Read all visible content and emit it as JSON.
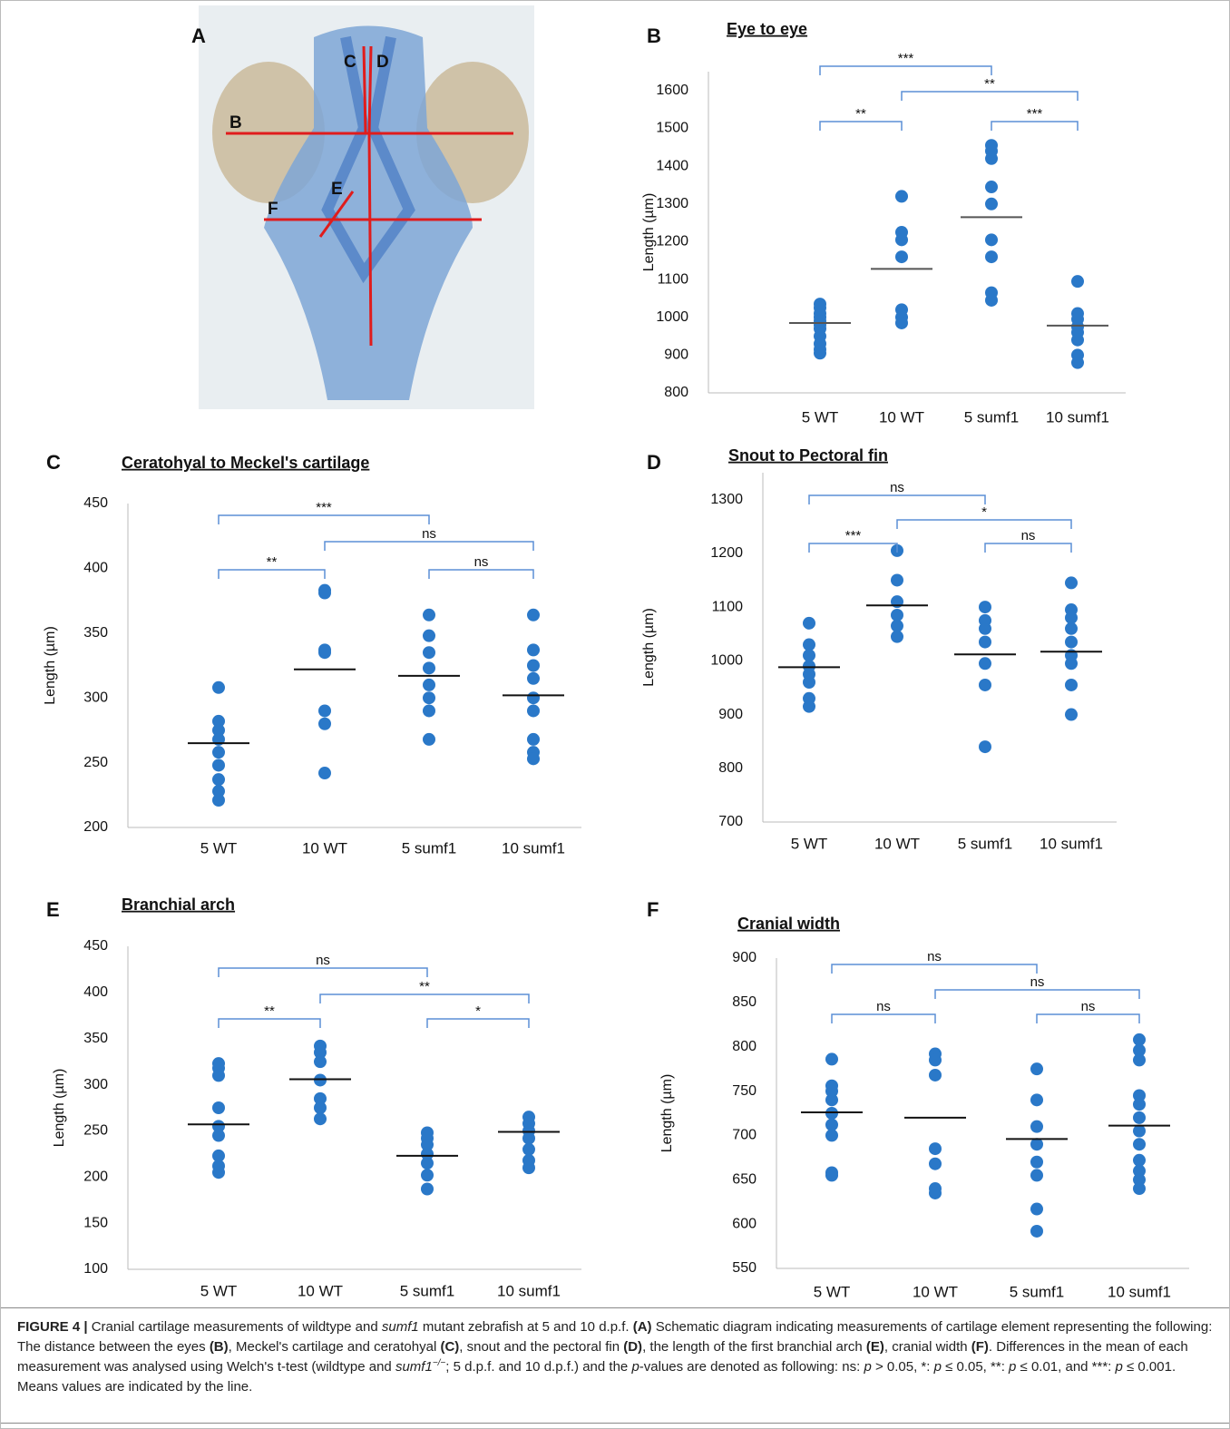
{
  "panel_a": {
    "panel": "A",
    "labels": [
      "B",
      "C",
      "D",
      "E",
      "F"
    ]
  },
  "chart_data": [
    {
      "type": "dot",
      "panel": "B",
      "title": "Eye to eye",
      "y_label": "Length (µm)",
      "color": "#2a78c8",
      "mean_color": "#555555",
      "bracket_color": "#5b8fd6",
      "categories": [
        "5 WT",
        "10 WT",
        "5 sumf1",
        "10 sumf1"
      ],
      "values": [
        [
          1035,
          1025,
          1010,
          1000,
          990,
          980,
          970,
          950,
          930,
          915,
          905
        ],
        [
          1320,
          1225,
          1205,
          1160,
          1020,
          1000,
          985
        ],
        [
          1455,
          1440,
          1420,
          1345,
          1300,
          1205,
          1160,
          1065,
          1045
        ],
        [
          1095,
          1010,
          995,
          975,
          960,
          940,
          900,
          880
        ]
      ],
      "means": [
        985,
        1128,
        1265,
        978
      ],
      "comparisons": [
        {
          "from": 0,
          "to": 2,
          "label": "***"
        },
        {
          "from": 1,
          "to": 3,
          "label": "**"
        },
        {
          "from": 0,
          "to": 1,
          "label": "**"
        },
        {
          "from": 2,
          "to": 3,
          "label": "***"
        }
      ],
      "ylim": [
        800,
        1650
      ],
      "yticks": [
        800,
        900,
        1000,
        1100,
        1200,
        1300,
        1400,
        1500,
        1600
      ]
    },
    {
      "type": "dot",
      "panel": "C",
      "title": "Ceratohyal to Meckel's cartilage",
      "y_label": "Length (µm)",
      "color": "#2a78c8",
      "mean_color": "#111111",
      "bracket_color": "#5b8fd6",
      "categories": [
        "5 WT",
        "10 WT",
        "5 sumf1",
        "10 sumf1"
      ],
      "values": [
        [
          308,
          282,
          275,
          268,
          258,
          248,
          237,
          228,
          221
        ],
        [
          383,
          381,
          337,
          335,
          290,
          280,
          242
        ],
        [
          364,
          348,
          335,
          323,
          310,
          300,
          290,
          268
        ],
        [
          364,
          337,
          325,
          315,
          300,
          290,
          268,
          258,
          253
        ]
      ],
      "means": [
        265,
        322,
        317,
        302
      ],
      "comparisons": [
        {
          "from": 0,
          "to": 2,
          "label": "***"
        },
        {
          "from": 1,
          "to": 3,
          "label": "ns"
        },
        {
          "from": 0,
          "to": 1,
          "label": "**"
        },
        {
          "from": 2,
          "to": 3,
          "label": "ns"
        }
      ],
      "ylim": [
        200,
        450
      ],
      "yticks": [
        200,
        250,
        300,
        350,
        400,
        450
      ]
    },
    {
      "type": "dot",
      "panel": "D",
      "title": "Snout to Pectoral fin",
      "y_label": "Length (µm)",
      "color": "#2a78c8",
      "mean_color": "#111111",
      "bracket_color": "#5b8fd6",
      "categories": [
        "5 WT",
        "10 WT",
        "5 sumf1",
        "10 sumf1"
      ],
      "values": [
        [
          1070,
          1030,
          1010,
          990,
          975,
          960,
          930,
          915
        ],
        [
          1205,
          1150,
          1110,
          1085,
          1065,
          1045
        ],
        [
          1100,
          1075,
          1060,
          1035,
          995,
          955,
          840
        ],
        [
          1145,
          1095,
          1080,
          1060,
          1035,
          1010,
          995,
          955,
          900
        ]
      ],
      "means": [
        988,
        1103,
        1012,
        1017
      ],
      "comparisons": [
        {
          "from": 0,
          "to": 2,
          "label": "ns"
        },
        {
          "from": 1,
          "to": 3,
          "label": "*"
        },
        {
          "from": 0,
          "to": 1,
          "label": "***"
        },
        {
          "from": 2,
          "to": 3,
          "label": "ns"
        }
      ],
      "ylim": [
        700,
        1350
      ],
      "yticks": [
        700,
        800,
        900,
        1000,
        1100,
        1200,
        1300
      ]
    },
    {
      "type": "dot",
      "panel": "E",
      "title": "Branchial arch",
      "y_label": "Length (µm)",
      "color": "#2a78c8",
      "mean_color": "#111111",
      "bracket_color": "#5b8fd6",
      "categories": [
        "5 WT",
        "10 WT",
        "5 sumf1",
        "10 sumf1"
      ],
      "values": [
        [
          323,
          318,
          310,
          275,
          255,
          245,
          223,
          212,
          205
        ],
        [
          342,
          335,
          325,
          305,
          285,
          275,
          263
        ],
        [
          248,
          242,
          235,
          225,
          215,
          202,
          187
        ],
        [
          265,
          258,
          250,
          242,
          230,
          218,
          210
        ]
      ],
      "means": [
        257,
        306,
        223,
        249
      ],
      "comparisons": [
        {
          "from": 0,
          "to": 2,
          "label": "ns"
        },
        {
          "from": 1,
          "to": 3,
          "label": "**"
        },
        {
          "from": 0,
          "to": 1,
          "label": "**"
        },
        {
          "from": 2,
          "to": 3,
          "label": "*"
        }
      ],
      "ylim": [
        100,
        450
      ],
      "yticks": [
        100,
        150,
        200,
        250,
        300,
        350,
        400,
        450
      ]
    },
    {
      "type": "dot",
      "panel": "F",
      "title": "Cranial width",
      "y_label": "Length (µm)",
      "color": "#2a78c8",
      "mean_color": "#111111",
      "bracket_color": "#5b8fd6",
      "categories": [
        "5 WT",
        "10 WT",
        "5 sumf1",
        "10 sumf1"
      ],
      "values": [
        [
          786,
          756,
          750,
          740,
          725,
          712,
          700,
          658,
          655
        ],
        [
          792,
          785,
          768,
          685,
          668,
          640,
          635
        ],
        [
          775,
          740,
          710,
          690,
          670,
          655,
          617,
          592
        ],
        [
          808,
          796,
          785,
          745,
          735,
          720,
          705,
          690,
          672,
          660,
          650,
          640
        ]
      ],
      "means": [
        726,
        720,
        696,
        711
      ],
      "comparisons": [
        {
          "from": 0,
          "to": 2,
          "label": "ns"
        },
        {
          "from": 1,
          "to": 3,
          "label": "ns"
        },
        {
          "from": 0,
          "to": 1,
          "label": "ns"
        },
        {
          "from": 2,
          "to": 3,
          "label": "ns"
        }
      ],
      "ylim": [
        550,
        900
      ],
      "yticks": [
        550,
        600,
        650,
        700,
        750,
        800,
        850,
        900
      ]
    }
  ],
  "caption": {
    "runs": [
      {
        "text": "FIGURE 4 |",
        "style": "b"
      },
      {
        "text": " Cranial cartilage measurements of wildtype and ",
        "style": "n"
      },
      {
        "text": "sumf1",
        "style": "i"
      },
      {
        "text": " mutant zebrafish at 5 and 10 d.p.f. ",
        "style": "n"
      },
      {
        "text": "(A)",
        "style": "b"
      },
      {
        "text": " Schematic diagram indicating measurements of cartilage element representing the following: The distance between the eyes ",
        "style": "n"
      },
      {
        "text": "(B)",
        "style": "b"
      },
      {
        "text": ", Meckel's cartilage and ceratohyal ",
        "style": "n"
      },
      {
        "text": "(C)",
        "style": "b"
      },
      {
        "text": ", snout and the pectoral fin ",
        "style": "n"
      },
      {
        "text": "(D)",
        "style": "b"
      },
      {
        "text": ", the length of the first branchial arch ",
        "style": "n"
      },
      {
        "text": "(E)",
        "style": "b"
      },
      {
        "text": ", cranial width ",
        "style": "n"
      },
      {
        "text": "(F)",
        "style": "b"
      },
      {
        "text": ". Differences in the mean of each measurement was analysed using Welch's t-test (wildtype and ",
        "style": "n"
      },
      {
        "text": "sumf1",
        "style": "i"
      },
      {
        "text": "−/−",
        "style": "sup"
      },
      {
        "text": "; 5 d.p.f. and 10 d.p.f.) and the ",
        "style": "n"
      },
      {
        "text": "p",
        "style": "i"
      },
      {
        "text": "-values are denoted as following: ns: ",
        "style": "n"
      },
      {
        "text": "p",
        "style": "i"
      },
      {
        "text": " > 0.05, *: ",
        "style": "n"
      },
      {
        "text": "p",
        "style": "i"
      },
      {
        "text": " ≤ 0.05, **: ",
        "style": "n"
      },
      {
        "text": "p",
        "style": "i"
      },
      {
        "text": " ≤ 0.01, and ***: ",
        "style": "n"
      },
      {
        "text": "p",
        "style": "i"
      },
      {
        "text": " ≤ 0.001. Means values are indicated by the line.",
        "style": "n"
      }
    ]
  }
}
